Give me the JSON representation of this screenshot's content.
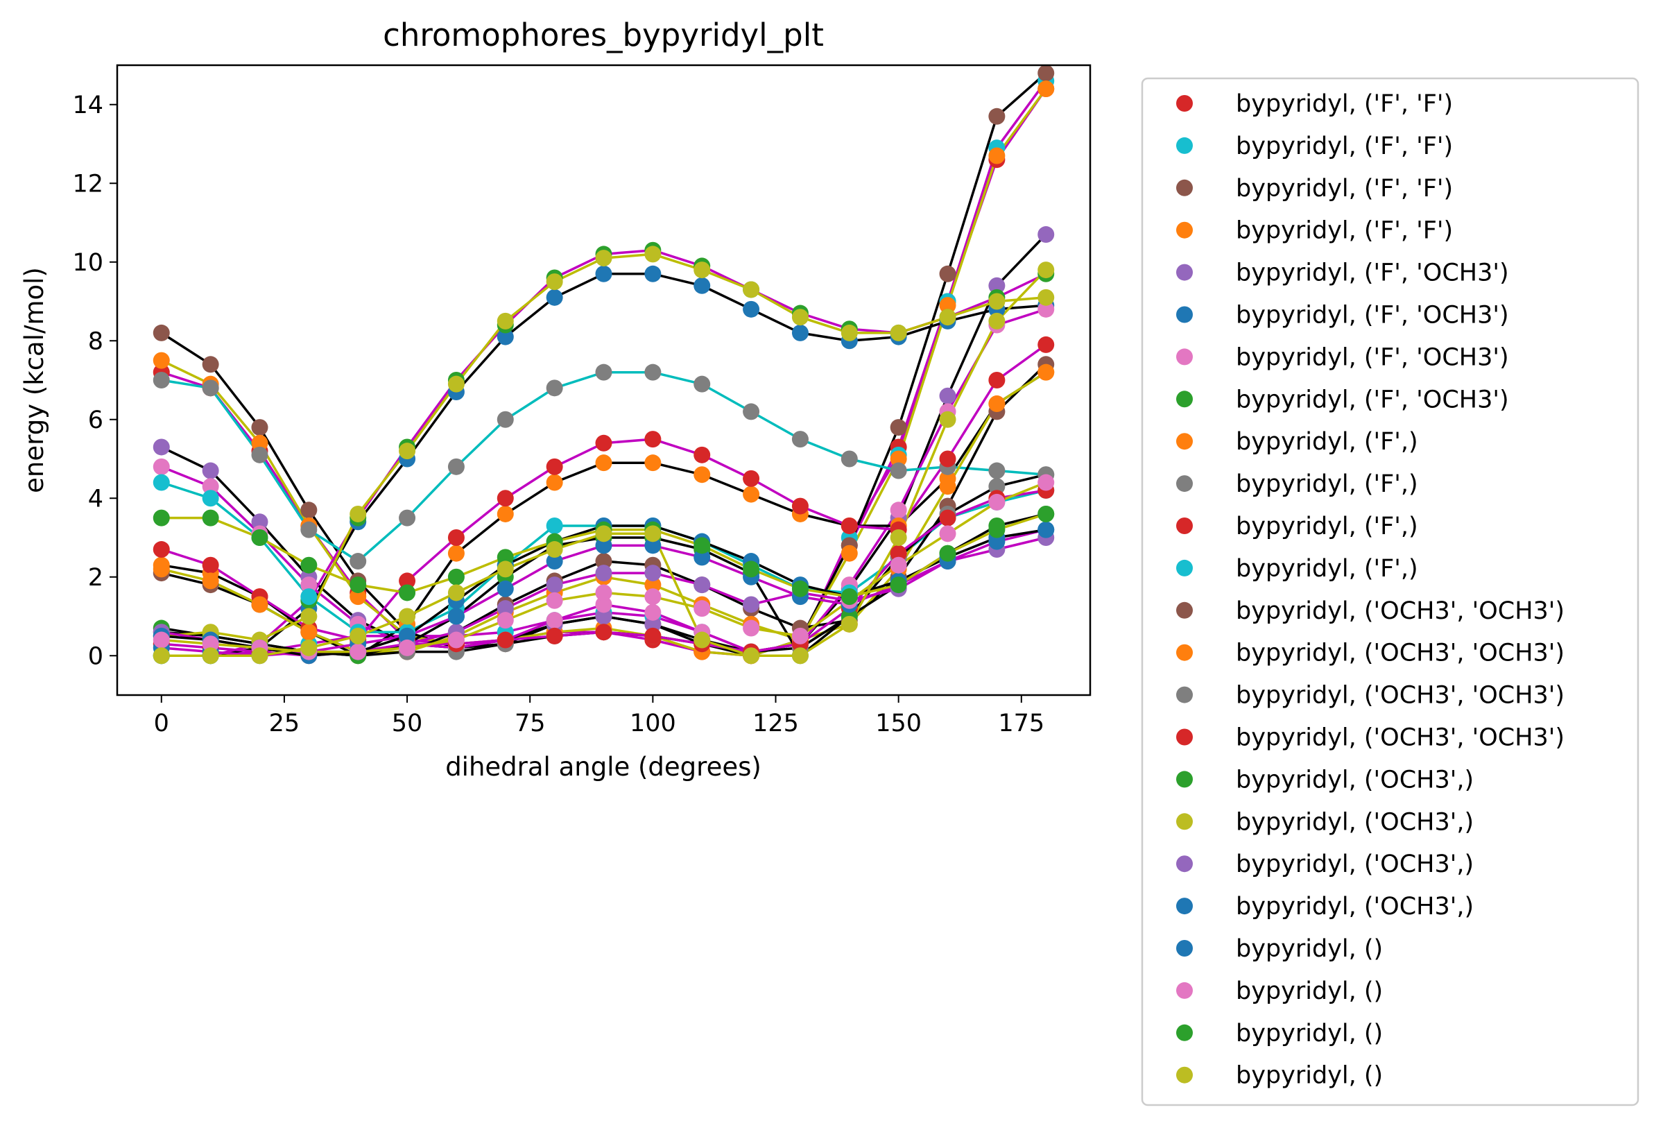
{
  "chart_data": {
    "type": "scatter",
    "title": "chromophores_bypyridyl_plt",
    "xlabel": "dihedral angle (degrees)",
    "ylabel": "energy (kcal/mol)",
    "xlim": [
      -9,
      189
    ],
    "ylim": [
      -1,
      15
    ],
    "xticks": [
      0,
      25,
      50,
      75,
      100,
      125,
      150,
      175
    ],
    "yticks": [
      0,
      2,
      4,
      6,
      8,
      10,
      12,
      14
    ],
    "grid": false,
    "legend_position": "outside-right",
    "fit_line_colors": [
      "#000000",
      "#c000c0",
      "#00bcbc",
      "#bcbc00"
    ],
    "x": [
      0,
      10,
      20,
      30,
      40,
      50,
      60,
      70,
      80,
      90,
      100,
      110,
      120,
      130,
      140,
      150,
      160,
      170,
      180
    ],
    "series": [
      {
        "name": "bypyridyl, ('F', 'F')",
        "color": "#d62728",
        "fit": "#c000c0",
        "values": [
          7.2,
          6.8,
          5.2,
          3.3,
          1.6,
          0.4,
          0.3,
          0.4,
          0.6,
          0.6,
          0.4,
          0.1,
          0.0,
          0.4,
          2.8,
          5.3,
          9.0,
          12.6,
          14.4
        ]
      },
      {
        "name": "bypyridyl, ('F', 'F')",
        "color": "#17becf",
        "fit": "#c000c0",
        "values": [
          0.0,
          0.0,
          0.1,
          0.3,
          0.5,
          0.5,
          0.5,
          0.6,
          0.9,
          1.1,
          1.0,
          0.6,
          0.1,
          0.3,
          3.0,
          5.1,
          9.0,
          12.9,
          14.6
        ]
      },
      {
        "name": "bypyridyl, ('F', 'F')",
        "color": "#8c564b",
        "fit": "#000000",
        "values": [
          8.2,
          7.4,
          5.8,
          3.7,
          1.9,
          0.6,
          0.2,
          0.3,
          0.8,
          1.0,
          0.8,
          0.3,
          0.0,
          0.4,
          2.8,
          5.8,
          9.7,
          13.7,
          14.8
        ]
      },
      {
        "name": "bypyridyl, ('F', 'F')",
        "color": "#ff7f0e",
        "fit": "#bcbc00",
        "values": [
          7.5,
          6.9,
          5.4,
          3.3,
          1.5,
          0.5,
          0.3,
          0.4,
          0.6,
          0.7,
          0.5,
          0.1,
          0.0,
          0.4,
          2.6,
          5.0,
          8.9,
          12.7,
          14.4
        ]
      },
      {
        "name": "bypyridyl, ('F', 'OCH3')",
        "color": "#9467bd",
        "fit": "#000000",
        "values": [
          5.3,
          4.7,
          3.4,
          2.0,
          0.9,
          0.3,
          0.2,
          0.4,
          0.8,
          1.0,
          0.8,
          0.4,
          0.1,
          0.3,
          1.7,
          3.5,
          6.6,
          9.4,
          10.7
        ]
      },
      {
        "name": "bypyridyl, ('F', 'OCH3')",
        "color": "#1f77b4",
        "fit": "#000000",
        "values": [
          0.0,
          0.0,
          0.2,
          1.2,
          3.4,
          5.0,
          6.7,
          8.1,
          9.1,
          9.7,
          9.7,
          9.4,
          8.8,
          8.2,
          8.0,
          8.1,
          8.5,
          8.8,
          8.9
        ]
      },
      {
        "name": "bypyridyl, ('F', 'OCH3')",
        "color": "#e377c2",
        "fit": "#c000c0",
        "values": [
          4.8,
          4.3,
          3.1,
          1.8,
          0.8,
          0.3,
          0.2,
          0.4,
          0.9,
          1.3,
          1.1,
          0.6,
          0.1,
          0.3,
          1.8,
          3.7,
          6.2,
          8.4,
          8.8
        ]
      },
      {
        "name": "bypyridyl, ('F', 'OCH3')",
        "color": "#2ca02c",
        "fit": "#c000c0",
        "values": [
          0.0,
          0.0,
          0.3,
          1.4,
          3.5,
          5.3,
          7.0,
          8.4,
          9.6,
          10.2,
          10.3,
          9.9,
          9.3,
          8.7,
          8.3,
          8.2,
          8.6,
          9.1,
          9.7
        ]
      },
      {
        "name": "bypyridyl, ('F',)",
        "color": "#ff7f0e",
        "fit": "#000000",
        "values": [
          2.3,
          2.1,
          1.5,
          0.6,
          0.0,
          0.8,
          2.6,
          3.6,
          4.4,
          4.9,
          4.9,
          4.6,
          4.1,
          3.6,
          3.3,
          3.3,
          4.5,
          6.4,
          7.2
        ]
      },
      {
        "name": "bypyridyl, ('F',)",
        "color": "#7f7f7f",
        "fit": "#00bcbc",
        "values": [
          7.0,
          6.8,
          5.1,
          3.2,
          2.4,
          3.5,
          4.8,
          6.0,
          6.8,
          7.2,
          7.2,
          6.9,
          6.2,
          5.5,
          5.0,
          4.7,
          4.8,
          4.7,
          4.6
        ]
      },
      {
        "name": "bypyridyl, ('F',)",
        "color": "#d62728",
        "fit": "#c000c0",
        "values": [
          2.7,
          2.3,
          1.5,
          0.7,
          0.4,
          1.9,
          3.0,
          4.0,
          4.8,
          5.4,
          5.5,
          5.1,
          4.5,
          3.8,
          3.3,
          3.2,
          5.0,
          7.0,
          7.9
        ]
      },
      {
        "name": "bypyridyl, ('F',)",
        "color": "#17becf",
        "fit": "#00bcbc",
        "values": [
          4.4,
          4.0,
          3.0,
          1.5,
          0.6,
          0.6,
          1.2,
          2.3,
          3.3,
          3.3,
          3.3,
          2.9,
          2.3,
          1.7,
          1.6,
          2.5,
          3.5,
          3.9,
          4.2
        ]
      },
      {
        "name": "bypyridyl, ('OCH3', 'OCH3')",
        "color": "#8c564b",
        "fit": "#000000",
        "values": [
          2.1,
          1.8,
          1.3,
          0.6,
          0.1,
          0.1,
          0.6,
          1.3,
          1.9,
          2.4,
          2.3,
          1.8,
          1.2,
          0.7,
          0.9,
          2.0,
          3.8,
          6.2,
          7.4
        ]
      },
      {
        "name": "bypyridyl, ('OCH3', 'OCH3')",
        "color": "#ff7f0e",
        "fit": "#bcbc00",
        "values": [
          2.2,
          1.9,
          1.3,
          0.6,
          0.1,
          0.1,
          0.5,
          1.1,
          1.6,
          2.0,
          1.8,
          1.3,
          0.8,
          0.4,
          0.8,
          2.2,
          4.3,
          6.4,
          7.2
        ]
      },
      {
        "name": "bypyridyl, ('OCH3', 'OCH3')",
        "color": "#7f7f7f",
        "fit": "#000000",
        "values": [
          0.6,
          0.5,
          0.3,
          0.1,
          0.0,
          0.1,
          0.1,
          0.3,
          0.5,
          0.6,
          0.5,
          0.3,
          0.1,
          0.2,
          1.0,
          2.5,
          3.6,
          4.3,
          4.6
        ]
      },
      {
        "name": "bypyridyl, ('OCH3', 'OCH3')",
        "color": "#d62728",
        "fit": "#c000c0",
        "values": [
          0.3,
          0.2,
          0.1,
          0.0,
          0.1,
          0.3,
          0.3,
          0.4,
          0.5,
          0.6,
          0.5,
          0.3,
          0.1,
          0.3,
          1.2,
          2.6,
          3.5,
          4.0,
          4.2
        ]
      },
      {
        "name": "bypyridyl, ('OCH3',)",
        "color": "#2ca02c",
        "fit": "#000000",
        "values": [
          0.7,
          0.5,
          0.3,
          0.1,
          0.0,
          0.3,
          1.0,
          2.0,
          2.8,
          3.0,
          3.0,
          2.7,
          2.1,
          0.0,
          1.0,
          1.8,
          2.6,
          3.3,
          3.6
        ]
      },
      {
        "name": "bypyridyl, ('OCH3',)",
        "color": "#bcbd22",
        "fit": "#bcbc00",
        "values": [
          0.5,
          0.6,
          0.4,
          1.0,
          3.6,
          5.2,
          6.9,
          8.5,
          9.5,
          10.1,
          10.2,
          9.8,
          9.3,
          8.6,
          8.2,
          8.2,
          8.6,
          9.0,
          9.1
        ]
      },
      {
        "name": "bypyridyl, ('OCH3',)",
        "color": "#9467bd",
        "fit": "#c000c0",
        "values": [
          0.6,
          0.4,
          0.2,
          0.1,
          0.1,
          0.3,
          0.6,
          1.2,
          1.8,
          2.1,
          2.1,
          1.8,
          1.3,
          1.6,
          1.4,
          1.7,
          2.4,
          2.7,
          3.0
        ]
      },
      {
        "name": "bypyridyl, ('OCH3',)",
        "color": "#1f77b4",
        "fit": "#c000c0",
        "values": [
          0.2,
          0.1,
          0.0,
          0.1,
          0.3,
          0.5,
          1.0,
          1.7,
          2.4,
          2.8,
          2.8,
          2.5,
          2.0,
          1.5,
          1.3,
          1.8,
          2.4,
          2.9,
          3.2
        ]
      },
      {
        "name": "bypyridyl, ()",
        "color": "#1f77b4",
        "fit": "#000000",
        "values": [
          0.5,
          0.4,
          0.2,
          0.0,
          0.1,
          0.5,
          1.4,
          2.3,
          2.9,
          3.3,
          3.3,
          2.9,
          2.4,
          1.8,
          1.5,
          1.9,
          2.5,
          3.0,
          3.2
        ]
      },
      {
        "name": "bypyridyl, ()",
        "color": "#e377c2",
        "fit": "#bcbc00",
        "values": [
          0.4,
          0.3,
          0.2,
          0.1,
          0.1,
          0.2,
          0.4,
          0.9,
          1.4,
          1.6,
          1.5,
          1.2,
          0.7,
          0.5,
          1.4,
          2.3,
          3.1,
          3.9,
          4.4
        ]
      },
      {
        "name": "bypyridyl, ()",
        "color": "#2ca02c",
        "fit": "#bcbc00",
        "values": [
          3.5,
          3.5,
          3.0,
          2.3,
          1.8,
          1.6,
          2.0,
          2.5,
          2.9,
          3.2,
          3.2,
          2.8,
          2.2,
          1.7,
          1.5,
          1.8,
          2.6,
          3.2,
          3.6
        ]
      },
      {
        "name": "bypyridyl, ()",
        "color": "#bcbd22",
        "fit": "#bcbc00",
        "values": [
          0.0,
          0.0,
          0.0,
          0.2,
          0.5,
          1.0,
          1.6,
          2.2,
          2.7,
          3.1,
          3.1,
          0.4,
          0.0,
          0.0,
          0.8,
          3.0,
          6.0,
          8.5,
          9.8
        ]
      }
    ]
  }
}
